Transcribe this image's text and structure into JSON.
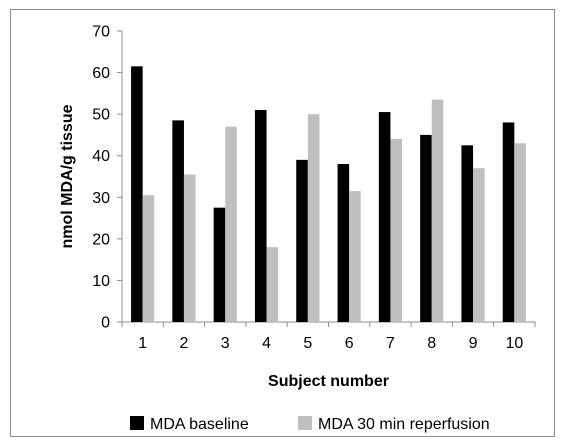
{
  "chart_data": {
    "type": "bar",
    "categories": [
      "1",
      "2",
      "3",
      "4",
      "5",
      "6",
      "7",
      "8",
      "9",
      "10"
    ],
    "series": [
      {
        "name": "MDA baseline",
        "color": "#000000",
        "values": [
          61.5,
          48.5,
          27.5,
          51.0,
          39.0,
          38.0,
          50.5,
          45.0,
          42.5,
          48.0
        ]
      },
      {
        "name": "MDA 30 min reperfusion",
        "color": "#bfbfbf",
        "values": [
          30.5,
          35.5,
          47.0,
          18.0,
          50.0,
          31.5,
          44.0,
          53.5,
          37.0,
          43.0
        ]
      }
    ],
    "title": "",
    "xlabel": "Subject number",
    "ylabel": "nmol MDA/g tissue",
    "ylim": [
      0,
      70
    ],
    "yticks": [
      0,
      10,
      20,
      30,
      40,
      50,
      60,
      70
    ],
    "grid": false,
    "legend_position": "bottom"
  }
}
